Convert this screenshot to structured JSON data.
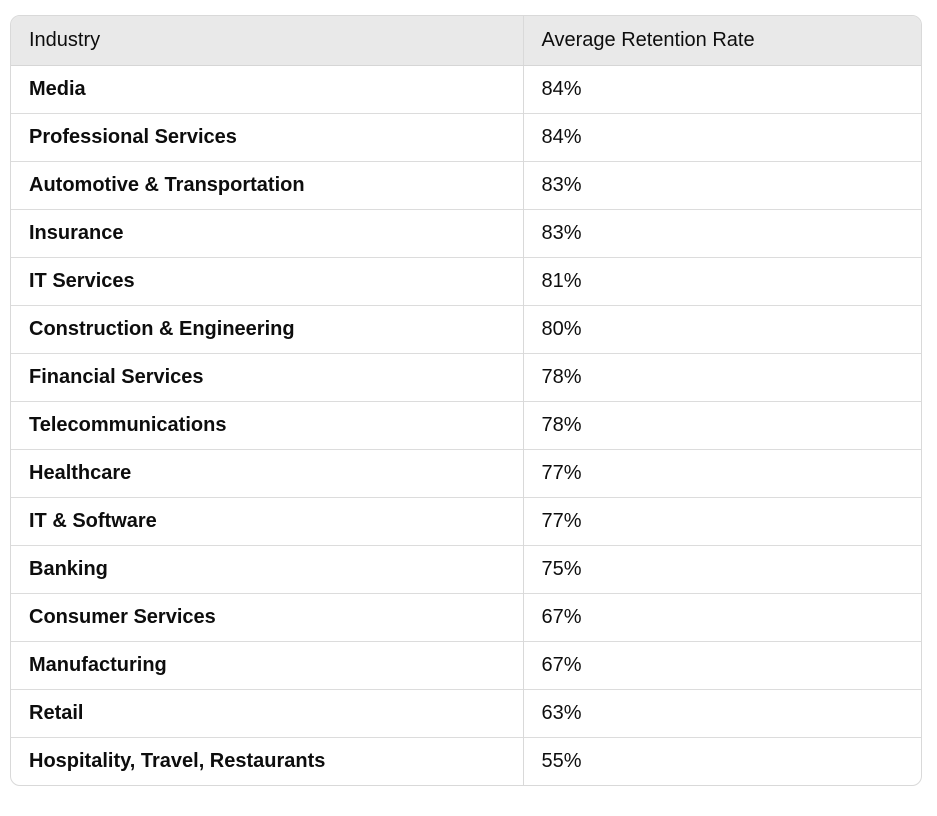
{
  "table": {
    "headers": [
      "Industry",
      "Average Retention Rate"
    ],
    "rows": [
      [
        "Media",
        "84%"
      ],
      [
        "Professional Services",
        "84%"
      ],
      [
        "Automotive & Transportation",
        "83%"
      ],
      [
        "Insurance",
        "83%"
      ],
      [
        "IT Services",
        "81%"
      ],
      [
        "Construction & Engineering",
        "80%"
      ],
      [
        "Financial Services",
        "78%"
      ],
      [
        "Telecommunications",
        "78%"
      ],
      [
        "Healthcare",
        "77%"
      ],
      [
        "IT & Software",
        "77%"
      ],
      [
        "Banking",
        "75%"
      ],
      [
        "Consumer Services",
        "67%"
      ],
      [
        "Manufacturing",
        "67%"
      ],
      [
        "Retail",
        "63%"
      ],
      [
        "Hospitality, Travel, Restaurants",
        "55%"
      ]
    ]
  }
}
